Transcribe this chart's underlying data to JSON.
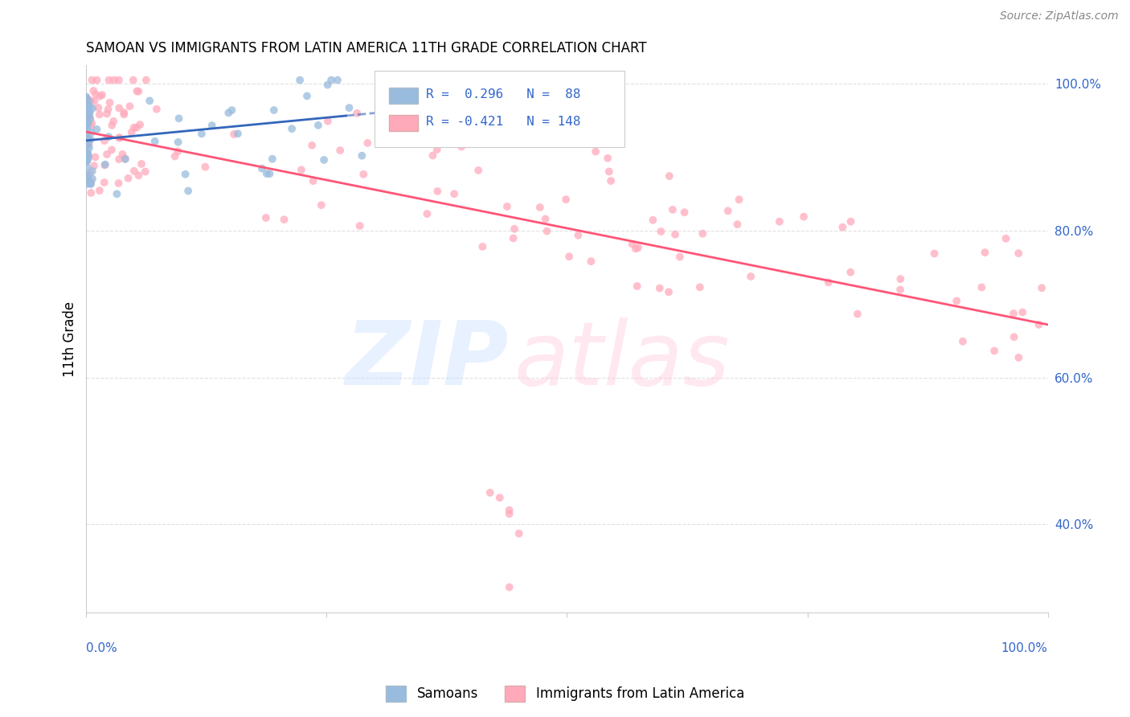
{
  "title": "SAMOAN VS IMMIGRANTS FROM LATIN AMERICA 11TH GRADE CORRELATION CHART",
  "source": "Source: ZipAtlas.com",
  "ylabel": "11th Grade",
  "xlim": [
    0.0,
    1.0
  ],
  "ylim": [
    0.28,
    1.025
  ],
  "ytick_vals": [
    0.4,
    0.6,
    0.8,
    1.0
  ],
  "ytick_labels": [
    "40.0%",
    "60.0%",
    "80.0%",
    "100.0%"
  ],
  "samoans_color": "#99bbdd",
  "latam_color": "#ffaabb",
  "samoans_line_color": "#3366bb",
  "latam_line_color": "#ff5577",
  "legend_box_color": "#ffffff",
  "legend_R1": "R =  0.296",
  "legend_N1": "N =  88",
  "legend_R2": "R = -0.421",
  "legend_N2": "N = 148",
  "text_color_blue": "#3366cc",
  "watermark_zip_color": "#ddeeff",
  "watermark_atlas_color": "#ffddee",
  "background_color": "#ffffff",
  "grid_color": "#dddddd",
  "bottom_legend_samoans": "Samoans",
  "bottom_legend_latam": "Immigrants from Latin America"
}
